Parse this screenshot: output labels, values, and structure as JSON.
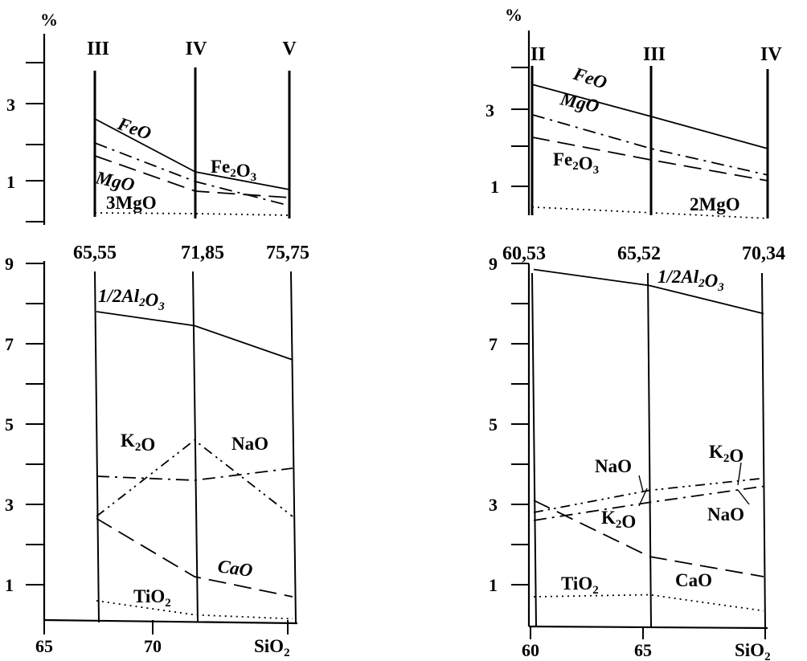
{
  "chart_data": [
    {
      "panel": "left-top",
      "type": "line",
      "ylabel": "%",
      "y_ticks": [
        3,
        1
      ],
      "stage_labels": [
        "III",
        "IV",
        "V"
      ],
      "x": [
        65.55,
        71.85,
        75.75
      ],
      "series": [
        {
          "name": "FeO",
          "style": "solid",
          "values": [
            2.6,
            1.2,
            null
          ]
        },
        {
          "name": "Fe2O3",
          "style": "solid",
          "values": [
            null,
            1.2,
            0.8
          ]
        },
        {
          "name": "MgO",
          "style": "dashed",
          "values": [
            1.5,
            0.7,
            0.55
          ]
        },
        {
          "name": "",
          "style": "dashdot",
          "values": [
            1.65,
            0.75,
            0.4
          ]
        },
        {
          "name": "3MgO",
          "style": "dotted",
          "values": [
            0.25,
            0.2,
            0.15
          ]
        }
      ],
      "series_labels": [
        "FeO",
        "Fe2O3",
        "MgO",
        "3MgO"
      ]
    },
    {
      "panel": "left-bottom",
      "type": "line",
      "y_ticks": [
        9,
        7,
        5,
        3,
        1
      ],
      "x_ticks": [
        "65",
        "70",
        "SiO2"
      ],
      "column_values": [
        "65,55",
        "71,85",
        "75,75"
      ],
      "x": [
        65.55,
        71.85,
        75.75
      ],
      "series": [
        {
          "name": "1/2Al2O3",
          "style": "solid",
          "values": [
            7.8,
            7.45,
            6.6
          ]
        },
        {
          "name": "K2O",
          "style": "dashdot",
          "values": [
            3.7,
            3.6,
            3.9
          ]
        },
        {
          "name": "NaO",
          "style": "dashdotdot",
          "values": [
            2.7,
            4.6,
            2.7
          ]
        },
        {
          "name": "CaO",
          "style": "dashed",
          "values": [
            2.65,
            1.2,
            0.7
          ]
        },
        {
          "name": "TiO2",
          "style": "dotted",
          "values": [
            0.6,
            0.25,
            0.15
          ]
        }
      ]
    },
    {
      "panel": "right-top",
      "type": "line",
      "ylabel": "%",
      "y_ticks": [
        3,
        1
      ],
      "stage_labels": [
        "II",
        "III",
        "IV"
      ],
      "x": [
        60.53,
        65.52,
        70.34
      ],
      "series": [
        {
          "name": "FeO",
          "style": "solid",
          "values": [
            3.7,
            2.85,
            2.0
          ]
        },
        {
          "name": "MgO",
          "style": "dashdot",
          "values": [
            2.9,
            2.0,
            1.3
          ]
        },
        {
          "name": "Fe2O3",
          "style": "dashed",
          "values": [
            2.3,
            1.7,
            1.15
          ]
        },
        {
          "name": "2MgO",
          "style": "dotted",
          "values": [
            0.45,
            0.3,
            0.15
          ]
        }
      ]
    },
    {
      "panel": "right-bottom",
      "type": "line",
      "y_ticks": [
        9,
        7,
        5,
        3,
        1
      ],
      "x_ticks": [
        "60",
        "65",
        "SiO2"
      ],
      "column_values": [
        "60,53",
        "65,52",
        "70,34"
      ],
      "x": [
        60.53,
        65.52,
        70.34
      ],
      "series": [
        {
          "name": "1/2Al2O3",
          "style": "solid",
          "values": [
            8.85,
            8.45,
            7.75
          ]
        },
        {
          "name": "NaO",
          "style": "dashdotdot",
          "values": [
            2.8,
            3.35,
            3.65
          ]
        },
        {
          "name": "K2O",
          "style": "dashdot",
          "values": [
            2.6,
            3.05,
            3.45
          ]
        },
        {
          "name": "CaO",
          "style": "dashed",
          "values": [
            3.1,
            1.7,
            1.2
          ]
        },
        {
          "name": "TiO2",
          "style": "dotted",
          "values": [
            0.7,
            0.75,
            0.35
          ]
        }
      ],
      "series_labels": [
        "NaO",
        "K2O",
        "K2O",
        "NaO",
        "TiO2",
        "CaO",
        "1/2Al2O3"
      ]
    }
  ]
}
